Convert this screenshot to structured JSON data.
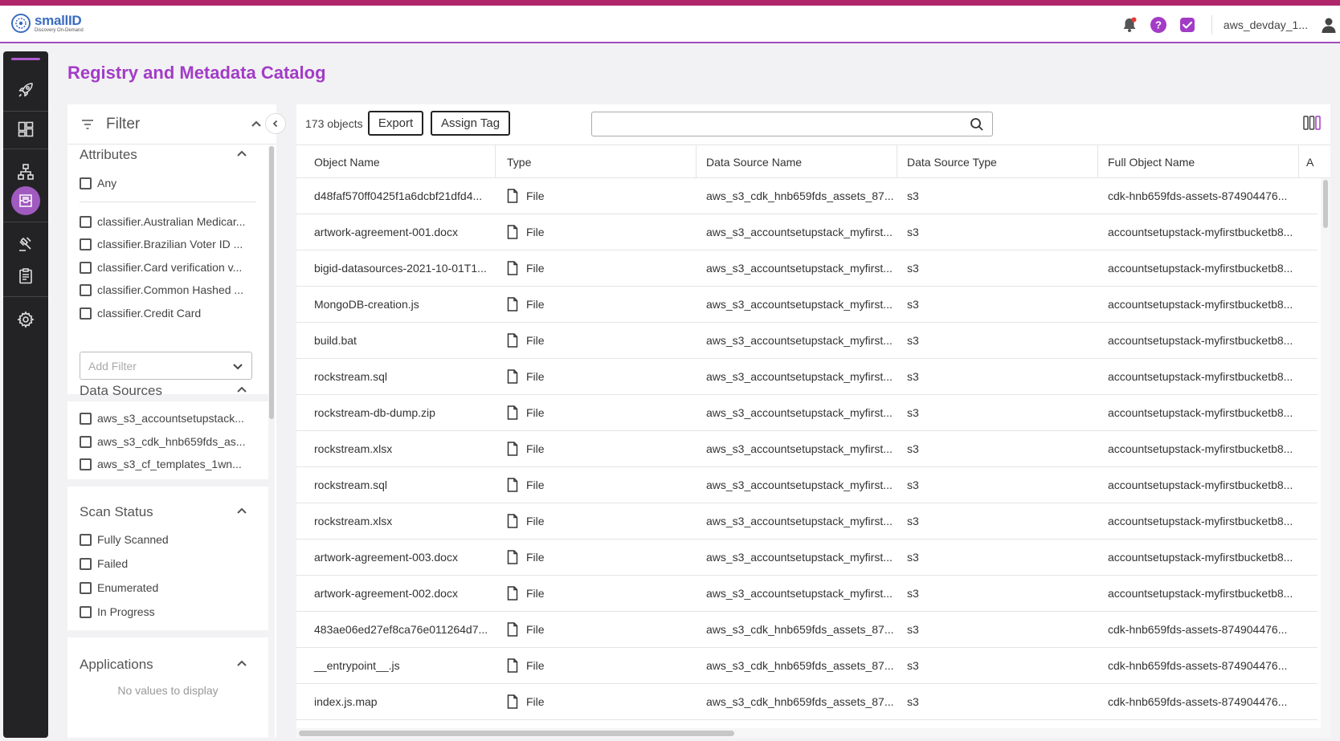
{
  "app": {
    "logo_name": "smallID",
    "logo_tagline": "Discovery On-Demand",
    "username": "aws_devday_1..."
  },
  "page": {
    "title": "Registry and Metadata Catalog"
  },
  "filter": {
    "title": "Filter",
    "attributes": {
      "title": "Attributes",
      "items": [
        "Any",
        "classifier.Australian Medicar...",
        "classifier.Brazilian Voter ID ...",
        "classifier.Card verification v...",
        "classifier.Common Hashed ...",
        "classifier.Credit Card"
      ],
      "add_filter_placeholder": "Add Filter"
    },
    "data_sources": {
      "title": "Data Sources",
      "items": [
        "aws_s3_accountsetupstack...",
        "aws_s3_cdk_hnb659fds_as...",
        "aws_s3_cf_templates_1wn..."
      ]
    },
    "scan_status": {
      "title": "Scan Status",
      "items": [
        "Fully Scanned",
        "Failed",
        "Enumerated",
        "In Progress"
      ]
    },
    "applications": {
      "title": "Applications",
      "empty_text": "No values to display"
    }
  },
  "toolbar": {
    "object_count": "173 objects",
    "export_label": "Export",
    "assign_tag_label": "Assign Tag",
    "search_value": ""
  },
  "table": {
    "columns": [
      "Object Name",
      "Type",
      "Data Source Name",
      "Data Source Type",
      "Full Object Name",
      "A"
    ],
    "rows": [
      [
        "d48faf570ff0425f1a6dcbf21dfd4...",
        "File",
        "aws_s3_cdk_hnb659fds_assets_87...",
        "s3",
        "cdk-hnb659fds-assets-874904476..."
      ],
      [
        "artwork-agreement-001.docx",
        "File",
        "aws_s3_accountsetupstack_myfirst...",
        "s3",
        "accountsetupstack-myfirstbucketb8..."
      ],
      [
        "bigid-datasources-2021-10-01T1...",
        "File",
        "aws_s3_accountsetupstack_myfirst...",
        "s3",
        "accountsetupstack-myfirstbucketb8..."
      ],
      [
        "MongoDB-creation.js",
        "File",
        "aws_s3_accountsetupstack_myfirst...",
        "s3",
        "accountsetupstack-myfirstbucketb8..."
      ],
      [
        "build.bat",
        "File",
        "aws_s3_accountsetupstack_myfirst...",
        "s3",
        "accountsetupstack-myfirstbucketb8..."
      ],
      [
        "rockstream.sql",
        "File",
        "aws_s3_accountsetupstack_myfirst...",
        "s3",
        "accountsetupstack-myfirstbucketb8..."
      ],
      [
        "rockstream-db-dump.zip",
        "File",
        "aws_s3_accountsetupstack_myfirst...",
        "s3",
        "accountsetupstack-myfirstbucketb8..."
      ],
      [
        "rockstream.xlsx",
        "File",
        "aws_s3_accountsetupstack_myfirst...",
        "s3",
        "accountsetupstack-myfirstbucketb8..."
      ],
      [
        "rockstream.sql",
        "File",
        "aws_s3_accountsetupstack_myfirst...",
        "s3",
        "accountsetupstack-myfirstbucketb8..."
      ],
      [
        "rockstream.xlsx",
        "File",
        "aws_s3_accountsetupstack_myfirst...",
        "s3",
        "accountsetupstack-myfirstbucketb8..."
      ],
      [
        "artwork-agreement-003.docx",
        "File",
        "aws_s3_accountsetupstack_myfirst...",
        "s3",
        "accountsetupstack-myfirstbucketb8..."
      ],
      [
        "artwork-agreement-002.docx",
        "File",
        "aws_s3_accountsetupstack_myfirst...",
        "s3",
        "accountsetupstack-myfirstbucketb8..."
      ],
      [
        "483ae06ed27ef8ca76e011264d7...",
        "File",
        "aws_s3_cdk_hnb659fds_assets_87...",
        "s3",
        "cdk-hnb659fds-assets-874904476..."
      ],
      [
        "__entrypoint__.js",
        "File",
        "aws_s3_cdk_hnb659fds_assets_87...",
        "s3",
        "cdk-hnb659fds-assets-874904476..."
      ],
      [
        "index.js.map",
        "File",
        "aws_s3_cdk_hnb659fds_assets_87...",
        "s3",
        "cdk-hnb659fds-assets-874904476..."
      ]
    ]
  },
  "icons": {
    "top": [
      "bell-icon",
      "help-icon",
      "tasks-check-icon",
      "user-icon"
    ],
    "sidenav": [
      "rocket-icon",
      "dashboard-icon",
      "hierarchy-icon",
      "catalog-icon",
      "gavel-icon",
      "clipboard-icon",
      "settings-icon"
    ],
    "file": "file-icon"
  },
  "colors": {
    "brand_purple": "#a23cc6",
    "top_stripe": "#b0266b",
    "nav_bg": "#232325",
    "nav_active": "#a05ac0",
    "notification_dot": "#e53935"
  }
}
